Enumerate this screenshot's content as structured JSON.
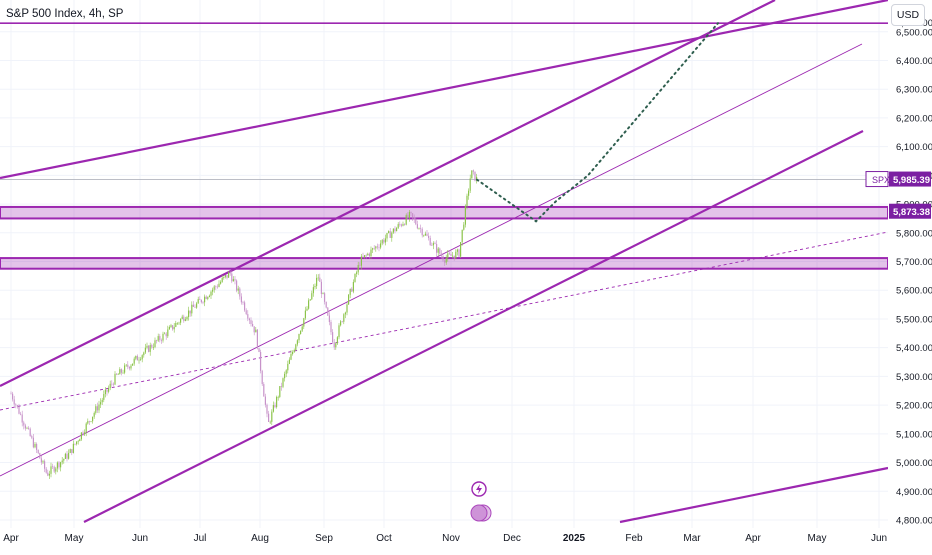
{
  "header": {
    "title": "S&P 500 Index, 4h, SP",
    "currency_button": "USD"
  },
  "chart_data": {
    "type": "candlestick",
    "symbol": "SPX",
    "y_ticks": [
      "4,800.00",
      "4,900.00",
      "5,000.00",
      "5,100.00",
      "5,200.00",
      "5,300.00",
      "5,400.00",
      "5,500.00",
      "5,600.00",
      "5,700.00",
      "5,800.00",
      "5,900.00",
      "6,000.00",
      "6,100.00",
      "6,200.00",
      "6,300.00",
      "6,400.00",
      "6,500.00"
    ],
    "ylim": [
      4800,
      6535
    ],
    "x_ticks": [
      "Apr",
      "May",
      "Jun",
      "Jul",
      "Aug",
      "Sep",
      "Oct",
      "Nov",
      "Dec",
      "2025",
      "Feb",
      "Mar",
      "Apr",
      "May",
      "Jun"
    ],
    "price_labels": [
      {
        "label": "SPX",
        "value": "5,985.39",
        "price": 5985.39,
        "color": "#7b1fa2"
      },
      {
        "label": "",
        "value": "5,873.38",
        "price": 5873.38,
        "color": "#7b1fa2"
      }
    ],
    "horizontal_line": {
      "price": 6530,
      "color": "#9c27b0"
    },
    "zones": [
      {
        "from": 5850,
        "to": 5890,
        "color": "#9c27b0"
      },
      {
        "from": 5675,
        "to": 5712,
        "color": "#9c27b0"
      }
    ],
    "price_path_anchors": [
      {
        "date": "Apr 1",
        "price": 5240
      },
      {
        "date": "Apr 19",
        "price": 4960
      },
      {
        "date": "Apr 30",
        "price": 5030
      },
      {
        "date": "May 22",
        "price": 5300
      },
      {
        "date": "Jun 14",
        "price": 5450
      },
      {
        "date": "Jul 16",
        "price": 5660
      },
      {
        "date": "Jul 29",
        "price": 5450
      },
      {
        "date": "Aug 5",
        "price": 5130
      },
      {
        "date": "Aug 30",
        "price": 5650
      },
      {
        "date": "Sep 6",
        "price": 5410
      },
      {
        "date": "Sep 19",
        "price": 5700
      },
      {
        "date": "Oct 14",
        "price": 5860
      },
      {
        "date": "Oct 31",
        "price": 5710
      },
      {
        "date": "Nov 5",
        "price": 5730
      },
      {
        "date": "Nov 11",
        "price": 6010
      },
      {
        "date": "Nov 14",
        "price": 5985
      }
    ],
    "projection": [
      {
        "date": "Nov 14",
        "price": 5985
      },
      {
        "date": "Dec 13",
        "price": 5840
      },
      {
        "date": "Dec 23",
        "price": 5910
      },
      {
        "date": "Jan 8",
        "price": 6000
      },
      {
        "date": "Mar 14",
        "price": 6530
      }
    ],
    "colors": {
      "accent": "#9c27b0",
      "up": "#8bc34a",
      "down": "#c792c9",
      "grid": "#e0e3eb"
    }
  }
}
